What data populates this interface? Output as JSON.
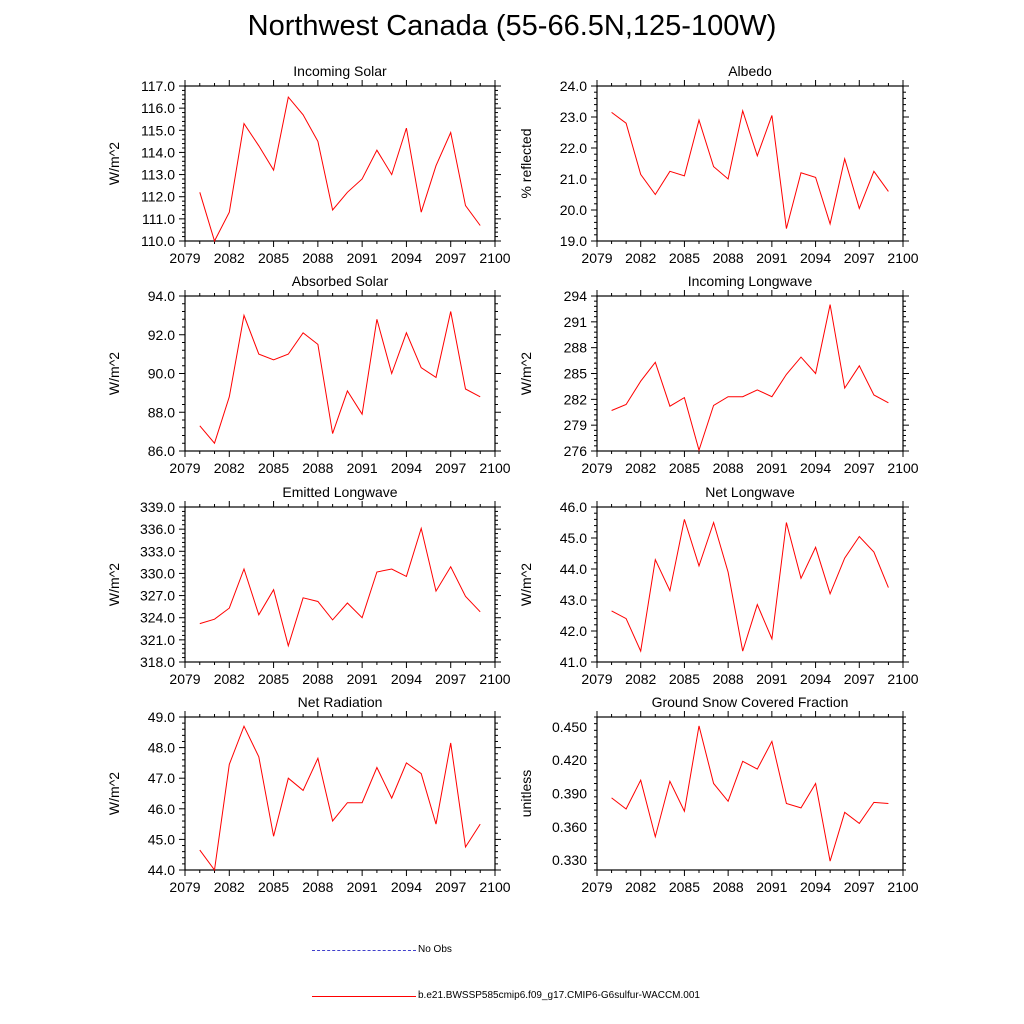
{
  "title": "Northwest Canada (55-66.5N,125-100W)",
  "colors": {
    "model_line": "#ff0000",
    "obs_line": "#4040cc",
    "axis": "#000000"
  },
  "legend": {
    "obs_label": "No Obs",
    "model_label": "b.e21.BWSSP585cmip6.f09_g17.CMIP6-G6sulfur-WACCM.001"
  },
  "chart_data": [
    {
      "type": "line",
      "title": "Incoming Solar",
      "ylabel": "W/m^2",
      "xlim": [
        2079,
        2100
      ],
      "ylim": [
        110,
        117
      ],
      "xticks": [
        "2079",
        "2082",
        "2085",
        "2088",
        "2091",
        "2094",
        "2097",
        "2100"
      ],
      "yticks": [
        "110.0",
        "111.0",
        "112.0",
        "113.0",
        "114.0",
        "115.0",
        "116.0",
        "117.0"
      ],
      "x": [
        2080,
        2081,
        2082,
        2083,
        2084,
        2085,
        2086,
        2087,
        2088,
        2089,
        2090,
        2091,
        2092,
        2093,
        2094,
        2095,
        2096,
        2097,
        2098,
        2099
      ],
      "series": [
        {
          "values": [
            112.2,
            110.0,
            111.3,
            115.3,
            114.3,
            113.2,
            116.5,
            115.7,
            114.5,
            111.4,
            112.2,
            112.8,
            114.1,
            113.0,
            115.1,
            111.3,
            113.4,
            114.9,
            111.6,
            110.7
          ]
        }
      ]
    },
    {
      "type": "line",
      "title": "Albedo",
      "ylabel": "% reflected",
      "xlim": [
        2079,
        2100
      ],
      "ylim": [
        19,
        24
      ],
      "xticks": [
        "2079",
        "2082",
        "2085",
        "2088",
        "2091",
        "2094",
        "2097",
        "2100"
      ],
      "yticks": [
        "19.0",
        "20.0",
        "21.0",
        "22.0",
        "23.0",
        "24.0"
      ],
      "x": [
        2080,
        2081,
        2082,
        2083,
        2084,
        2085,
        2086,
        2087,
        2088,
        2089,
        2090,
        2091,
        2092,
        2093,
        2094,
        2095,
        2096,
        2097,
        2098,
        2099
      ],
      "series": [
        {
          "values": [
            23.15,
            22.8,
            21.15,
            20.5,
            21.25,
            21.1,
            22.9,
            21.4,
            21.0,
            23.2,
            21.75,
            23.05,
            19.4,
            21.2,
            21.05,
            19.55,
            21.65,
            20.05,
            21.25,
            20.6
          ]
        }
      ]
    },
    {
      "type": "line",
      "title": "Absorbed Solar",
      "ylabel": "W/m^2",
      "xlim": [
        2079,
        2100
      ],
      "ylim": [
        86,
        94
      ],
      "xticks": [
        "2079",
        "2082",
        "2085",
        "2088",
        "2091",
        "2094",
        "2097",
        "2100"
      ],
      "yticks": [
        "86.0",
        "88.0",
        "90.0",
        "92.0",
        "94.0"
      ],
      "x": [
        2080,
        2081,
        2082,
        2083,
        2084,
        2085,
        2086,
        2087,
        2088,
        2089,
        2090,
        2091,
        2092,
        2093,
        2094,
        2095,
        2096,
        2097,
        2098,
        2099
      ],
      "series": [
        {
          "values": [
            87.3,
            86.4,
            88.8,
            93.0,
            91.0,
            90.7,
            91.0,
            92.1,
            91.5,
            86.9,
            89.1,
            87.9,
            92.8,
            90.0,
            92.1,
            90.3,
            89.8,
            93.2,
            89.2,
            88.8
          ]
        }
      ]
    },
    {
      "type": "line",
      "title": "Incoming Longwave",
      "ylabel": "W/m^2",
      "xlim": [
        2079,
        2100
      ],
      "ylim": [
        276,
        294
      ],
      "xticks": [
        "2079",
        "2082",
        "2085",
        "2088",
        "2091",
        "2094",
        "2097",
        "2100"
      ],
      "yticks": [
        "276",
        "279",
        "282",
        "285",
        "288",
        "291",
        "294"
      ],
      "x": [
        2080,
        2081,
        2082,
        2083,
        2084,
        2085,
        2086,
        2087,
        2088,
        2089,
        2090,
        2091,
        2092,
        2093,
        2094,
        2095,
        2096,
        2097,
        2098,
        2099
      ],
      "series": [
        {
          "values": [
            280.7,
            281.4,
            284.1,
            286.3,
            281.2,
            282.2,
            276.1,
            281.3,
            282.3,
            282.3,
            283.1,
            282.3,
            284.9,
            286.9,
            285.0,
            293.0,
            283.3,
            285.9,
            282.5,
            281.6
          ]
        }
      ]
    },
    {
      "type": "line",
      "title": "Emitted Longwave",
      "ylabel": "W/m^2",
      "xlim": [
        2079,
        2100
      ],
      "ylim": [
        318,
        339
      ],
      "xticks": [
        "2079",
        "2082",
        "2085",
        "2088",
        "2091",
        "2094",
        "2097",
        "2100"
      ],
      "yticks": [
        "318.0",
        "321.0",
        "324.0",
        "327.0",
        "330.0",
        "333.0",
        "336.0",
        "339.0"
      ],
      "x": [
        2080,
        2081,
        2082,
        2083,
        2084,
        2085,
        2086,
        2087,
        2088,
        2089,
        2090,
        2091,
        2092,
        2093,
        2094,
        2095,
        2096,
        2097,
        2098,
        2099
      ],
      "series": [
        {
          "values": [
            323.2,
            323.8,
            325.3,
            330.6,
            324.4,
            327.8,
            320.2,
            326.7,
            326.2,
            323.7,
            326.0,
            324.0,
            330.2,
            330.6,
            329.6,
            336.1,
            327.6,
            330.9,
            326.9,
            324.8
          ]
        }
      ]
    },
    {
      "type": "line",
      "title": "Net Longwave",
      "ylabel": "W/m^2",
      "xlim": [
        2079,
        2100
      ],
      "ylim": [
        41,
        46
      ],
      "xticks": [
        "2079",
        "2082",
        "2085",
        "2088",
        "2091",
        "2094",
        "2097",
        "2100"
      ],
      "yticks": [
        "41.0",
        "42.0",
        "43.0",
        "44.0",
        "45.0",
        "46.0"
      ],
      "x": [
        2080,
        2081,
        2082,
        2083,
        2084,
        2085,
        2086,
        2087,
        2088,
        2089,
        2090,
        2091,
        2092,
        2093,
        2094,
        2095,
        2096,
        2097,
        2098,
        2099
      ],
      "series": [
        {
          "values": [
            42.65,
            42.4,
            41.35,
            44.3,
            43.3,
            45.6,
            44.1,
            45.5,
            43.9,
            41.35,
            42.85,
            41.75,
            45.5,
            43.7,
            44.7,
            43.2,
            44.35,
            45.05,
            44.55,
            43.4
          ]
        }
      ]
    },
    {
      "type": "line",
      "title": "Net Radiation",
      "ylabel": "W/m^2",
      "xlim": [
        2079,
        2100
      ],
      "ylim": [
        44,
        49
      ],
      "xticks": [
        "2079",
        "2082",
        "2085",
        "2088",
        "2091",
        "2094",
        "2097",
        "2100"
      ],
      "yticks": [
        "44.0",
        "45.0",
        "46.0",
        "47.0",
        "48.0",
        "49.0"
      ],
      "x": [
        2080,
        2081,
        2082,
        2083,
        2084,
        2085,
        2086,
        2087,
        2088,
        2089,
        2090,
        2091,
        2092,
        2093,
        2094,
        2095,
        2096,
        2097,
        2098,
        2099
      ],
      "series": [
        {
          "values": [
            44.65,
            44.0,
            47.45,
            48.7,
            47.7,
            45.1,
            47.0,
            46.6,
            47.65,
            45.6,
            46.2,
            46.2,
            47.35,
            46.35,
            47.5,
            47.15,
            45.5,
            48.15,
            44.75,
            45.5
          ]
        }
      ]
    },
    {
      "type": "line",
      "title": "Ground Snow Covered Fraction",
      "ylabel": "unitless",
      "xlim": [
        2079,
        2100
      ],
      "ylim": [
        0.321,
        0.459
      ],
      "xticks": [
        "2079",
        "2082",
        "2085",
        "2088",
        "2091",
        "2094",
        "2097",
        "2100"
      ],
      "yticks": [
        "0.330",
        "0.360",
        "0.390",
        "0.420",
        "0.450"
      ],
      "x": [
        2080,
        2081,
        2082,
        2083,
        2084,
        2085,
        2086,
        2087,
        2088,
        2089,
        2090,
        2091,
        2092,
        2093,
        2094,
        2095,
        2096,
        2097,
        2098,
        2099
      ],
      "series": [
        {
          "values": [
            0.386,
            0.376,
            0.402,
            0.351,
            0.401,
            0.374,
            0.451,
            0.399,
            0.383,
            0.419,
            0.412,
            0.437,
            0.381,
            0.377,
            0.399,
            0.329,
            0.373,
            0.363,
            0.382,
            0.381
          ]
        }
      ]
    }
  ]
}
